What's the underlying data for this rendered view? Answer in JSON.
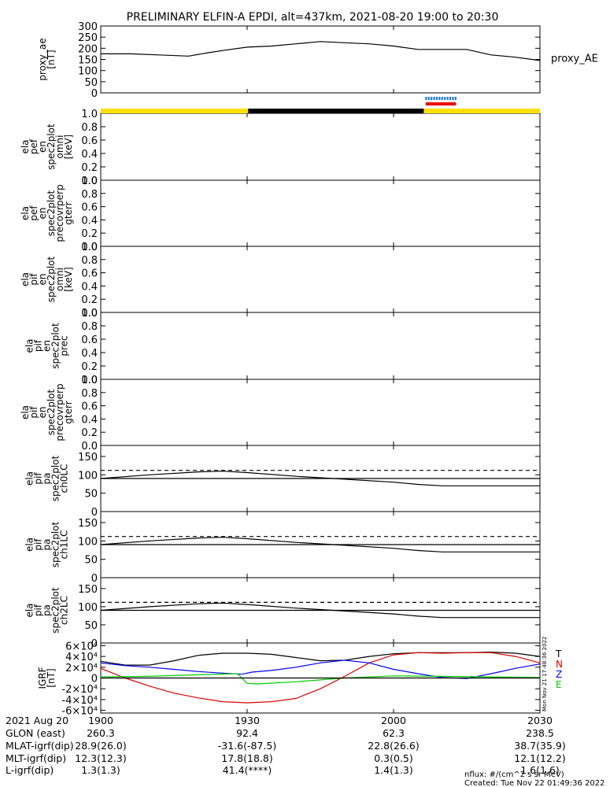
{
  "title": "PRELIMINARY ELFIN-A EPDI, alt=437km, 2021-08-20 19:00 to 20:30",
  "chart_data": {
    "type": "line",
    "x_unit": "UT time (minutes after 19:00)",
    "xlim": [
      0,
      90
    ],
    "panels": [
      {
        "id": "proxy_ae",
        "ylabel": [
          "proxy_ae",
          "[nT]"
        ],
        "right_label": "proxy_AE",
        "ylim": [
          0,
          300
        ],
        "yticks": [
          "0",
          "50",
          "100",
          "150",
          "200",
          "250",
          "300"
        ],
        "series": [
          {
            "name": "proxy_AE",
            "color": "#000000",
            "x": [
              0,
              6,
              12,
              18,
              22,
              25,
              30,
              35,
              40,
              45,
              50,
              55,
              60,
              65,
              70,
              75,
              80,
              85,
              90
            ],
            "values": [
              175,
              175,
              170,
              165,
              180,
              190,
              205,
              210,
              220,
              230,
              225,
              220,
              210,
              195,
              195,
              195,
              170,
              160,
              145
            ]
          }
        ]
      },
      {
        "id": "ela_pef_en_spec2plot_omni",
        "ylabel": [
          "ela",
          "pef",
          "en",
          "spec2plot",
          "omni",
          "[keV]"
        ],
        "ylim": [
          0,
          1.0
        ],
        "yticks": [
          "0.0",
          "0.2",
          "0.4",
          "0.6",
          "0.8",
          "1.0"
        ],
        "series": []
      },
      {
        "id": "ela_pef_en_spec2plot_precovrperp",
        "ylabel": [
          "ela",
          "pef",
          "en",
          "spec2plot",
          "precovrperp",
          "gterr"
        ],
        "ylim": [
          0,
          1.0
        ],
        "yticks": [
          "0.0",
          "0.2",
          "0.4",
          "0.6",
          "0.8",
          "1.0"
        ],
        "series": []
      },
      {
        "id": "ela_pif_en_spec2plot_omni",
        "ylabel": [
          "ela",
          "pif",
          "en",
          "spec2plot",
          "omni",
          "[keV]"
        ],
        "ylim": [
          0,
          1.0
        ],
        "yticks": [
          "0.0",
          "0.2",
          "0.4",
          "0.6",
          "0.8",
          "1.0"
        ],
        "series": []
      },
      {
        "id": "ela_pif_en_spec2plot_prec",
        "ylabel": [
          "ela",
          "pif",
          "en",
          "spec2plot",
          "prec"
        ],
        "ylim": [
          0,
          1.0
        ],
        "yticks": [
          "0.0",
          "0.2",
          "0.4",
          "0.6",
          "0.8",
          "1.0"
        ],
        "series": []
      },
      {
        "id": "ela_pif_en_spec2plot_precovrperp",
        "ylabel": [
          "ela",
          "pif",
          "en",
          "spec2plot",
          "precovrperp",
          "gterr"
        ],
        "ylim": [
          0,
          1.0
        ],
        "yticks": [
          "0.0",
          "0.2",
          "0.4",
          "0.6",
          "0.8",
          "1.0"
        ],
        "series": []
      },
      {
        "id": "ela_pif_pa_spec2plot_ch0LC",
        "ylabel": [
          "ela",
          "pif",
          "pa",
          "spec2plot",
          "ch0LC"
        ],
        "ylim": [
          0,
          180
        ],
        "yticks": [
          "0",
          "50",
          "100",
          "150"
        ],
        "series": [
          {
            "name": "LC",
            "color": "#000000",
            "dash": false,
            "x": [
              0,
              10,
              20,
              25,
              30,
              40,
              50,
              60,
              65,
              70,
              80,
              90
            ],
            "values": [
              90,
              100,
              108,
              110,
              106,
              96,
              88,
              80,
              74,
              70,
              70,
              70
            ]
          },
          {
            "name": "ALC",
            "color": "#000000",
            "dash": false,
            "x": [
              0,
              90
            ],
            "values": [
              90,
              90
            ]
          },
          {
            "name": "ref",
            "color": "#000000",
            "dash": true,
            "x": [
              0,
              90
            ],
            "values": [
              112,
              112
            ]
          }
        ]
      },
      {
        "id": "ela_pif_pa_spec2plot_ch1LC",
        "ylabel": [
          "ela",
          "pif",
          "pa",
          "spec2plot",
          "ch1LC"
        ],
        "ylim": [
          0,
          180
        ],
        "yticks": [
          "0",
          "50",
          "100",
          "150"
        ],
        "series": [
          {
            "name": "LC",
            "color": "#000000",
            "dash": false,
            "x": [
              0,
              10,
              20,
              25,
              30,
              40,
              50,
              60,
              65,
              70,
              80,
              90
            ],
            "values": [
              90,
              100,
              108,
              110,
              106,
              96,
              88,
              80,
              74,
              70,
              70,
              70
            ]
          },
          {
            "name": "ALC",
            "color": "#000000",
            "dash": false,
            "x": [
              0,
              90
            ],
            "values": [
              90,
              90
            ]
          },
          {
            "name": "ref",
            "color": "#000000",
            "dash": true,
            "x": [
              0,
              90
            ],
            "values": [
              112,
              112
            ]
          }
        ]
      },
      {
        "id": "ela_pif_pa_spec2plot_ch2LC",
        "ylabel": [
          "ela",
          "pif",
          "pa",
          "spec2plot",
          "ch2LC"
        ],
        "ylim": [
          0,
          180
        ],
        "yticks": [
          "0",
          "50",
          "100",
          "150"
        ],
        "series": [
          {
            "name": "LC",
            "color": "#000000",
            "dash": false,
            "x": [
              0,
              10,
              20,
              25,
              30,
              40,
              50,
              60,
              65,
              70,
              80,
              90
            ],
            "values": [
              90,
              100,
              108,
              110,
              106,
              96,
              88,
              80,
              74,
              70,
              70,
              70
            ]
          },
          {
            "name": "ALC",
            "color": "#000000",
            "dash": false,
            "x": [
              0,
              90
            ],
            "values": [
              90,
              90
            ]
          },
          {
            "name": "ref",
            "color": "#000000",
            "dash": true,
            "x": [
              0,
              90
            ],
            "values": [
              112,
              112
            ]
          }
        ]
      },
      {
        "id": "igrf",
        "ylabel": [
          "IGRF",
          "[nT]"
        ],
        "ylim": [
          -65000,
          65000
        ],
        "yticks": [
          "-6×10⁴",
          "-4×10⁴",
          "-2×10⁴",
          "0",
          "2×10⁴",
          "4×10⁴",
          "6×10⁴"
        ],
        "ytick_values": [
          -60000,
          -40000,
          -20000,
          0,
          20000,
          40000,
          60000
        ],
        "right_legend": [
          {
            "label": "T",
            "color": "#000000"
          },
          {
            "label": "N",
            "color": "#dd0000"
          },
          {
            "label": "Z",
            "color": "#0000ff"
          },
          {
            "label": "E",
            "color": "#00cc00"
          }
        ],
        "side_text": "Mon Nov 21 17:48:36 2022",
        "series": [
          {
            "name": "T",
            "color": "#000000",
            "x": [
              0,
              5,
              10,
              15,
              20,
              25,
              30,
              35,
              40,
              45,
              50,
              55,
              60,
              65,
              70,
              75,
              80,
              85,
              90
            ],
            "values": [
              31000,
              24000,
              24000,
              32000,
              42000,
              46000,
              46000,
              44000,
              38000,
              32000,
              33000,
              40000,
              45000,
              47000,
              47000,
              47000,
              48000,
              46000,
              40000
            ]
          },
          {
            "name": "N",
            "color": "#dd0000",
            "x": [
              0,
              5,
              10,
              15,
              20,
              25,
              30,
              35,
              40,
              45,
              50,
              55,
              60,
              65,
              70,
              75,
              80,
              85,
              90
            ],
            "values": [
              18000,
              0,
              -15000,
              -28000,
              -37000,
              -44000,
              -46000,
              -44000,
              -38000,
              -20000,
              3000,
              28000,
              43000,
              47000,
              46000,
              47000,
              47000,
              40000,
              28000
            ]
          },
          {
            "name": "Z",
            "color": "#0000ff",
            "x": [
              0,
              5,
              10,
              15,
              20,
              25,
              29,
              31,
              35,
              40,
              45,
              50,
              55,
              60,
              65,
              70,
              75,
              80,
              85,
              90
            ],
            "values": [
              28000,
              23000,
              20000,
              16000,
              12000,
              9000,
              7000,
              11000,
              14000,
              20000,
              28000,
              33000,
              28000,
              16000,
              8000,
              1000,
              -1000,
              8000,
              18000,
              26000
            ]
          },
          {
            "name": "E",
            "color": "#00cc00",
            "x": [
              0,
              10,
              20,
              28,
              30,
              32,
              40,
              50,
              60,
              70,
              80,
              90
            ],
            "values": [
              2000,
              3000,
              6000,
              8000,
              -10000,
              -11000,
              -7000,
              0,
              4000,
              3000,
              2000,
              1000
            ]
          },
          {
            "name": "zero",
            "color": "#000000",
            "x": [
              0,
              90
            ],
            "values": [
              0,
              0
            ]
          }
        ]
      }
    ],
    "orbit_bar": {
      "segments": [
        {
          "from": 0,
          "to": 30.2,
          "color": "#ffe000"
        },
        {
          "from": 30.2,
          "to": 66.2,
          "color": "#000000"
        },
        {
          "from": 66.2,
          "to": 90,
          "color": "#ffe000"
        }
      ],
      "blue_marks": {
        "from": 66.5,
        "to": 73.0,
        "color": "#1f78d2"
      },
      "red_bar": {
        "from": 66.6,
        "to": 72.8,
        "color": "#ee0000"
      }
    },
    "x_ticks": [
      {
        "x": 0,
        "label": "1900"
      },
      {
        "x": 30,
        "label": "1930"
      },
      {
        "x": 60,
        "label": "2000"
      },
      {
        "x": 90,
        "label": "2030"
      }
    ],
    "x_rows": [
      {
        "label": "2021 Aug 20",
        "values": [
          "",
          "",
          "",
          ""
        ]
      },
      {
        "label": "GLON (east)",
        "values": [
          "260.3",
          "92.4",
          "62.3",
          "238.5"
        ]
      },
      {
        "label": "MLAT-igrf(dip)",
        "values": [
          "28.9(26.0)",
          "-31.6(-87.5)",
          "22.8(26.6)",
          "38.7(35.9)"
        ]
      },
      {
        "label": "MLT-igrf(dip)",
        "values": [
          "12.3(12.3)",
          "17.8(18.8)",
          "0.3(0.5)",
          "12.1(12.2)"
        ]
      },
      {
        "label": "L-igrf(dip)",
        "values": [
          "1.3(1.3)",
          "41.4(****)",
          "1.4(1.3)",
          "1.6(1.6)"
        ]
      }
    ]
  },
  "footer": {
    "units": "nflux: #/(cm^2 s sr MeV)",
    "created": "Created: Tue Nov 22 01:49:36 2022"
  }
}
